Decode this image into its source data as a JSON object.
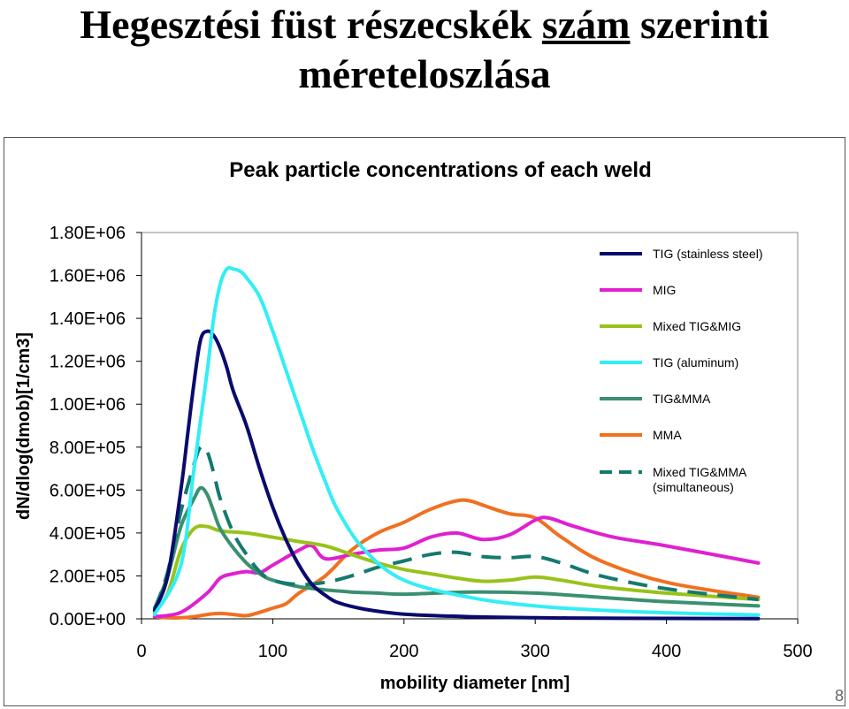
{
  "slide": {
    "title_part1": "Hegesztési füst részecskék",
    "title_underlined": "szám",
    "title_part2": "szerinti",
    "title_line2": "méreteloszlása",
    "page_number": "8"
  },
  "chart_data": {
    "type": "line",
    "title": "Peak particle concentrations of each weld",
    "xlabel": "mobility diameter [nm]",
    "ylabel": "dN/dlog(dmob)[1/cm3]",
    "xlim": [
      0,
      500
    ],
    "ylim": [
      0,
      1800000
    ],
    "x_ticks": [
      "0",
      "100",
      "200",
      "300",
      "400",
      "500"
    ],
    "y_ticks": [
      "0.00E+00",
      "2.00E+05",
      "4.00E+05",
      "6.00E+05",
      "8.00E+05",
      "1.00E+06",
      "1.20E+06",
      "1.40E+06",
      "1.60E+06",
      "1.80E+06"
    ],
    "grid": false,
    "legend_position": "top-right",
    "series": [
      {
        "name": "TIG (stainless steel)",
        "color": "#0a0a6e",
        "dash": false,
        "x": [
          10,
          20,
          30,
          35,
          40,
          45,
          50,
          55,
          60,
          65,
          70,
          80,
          90,
          100,
          110,
          120,
          130,
          140,
          150,
          170,
          200,
          250,
          300,
          350,
          400,
          470
        ],
        "y": [
          40000,
          200000,
          600000,
          850000,
          1100000,
          1300000,
          1340000,
          1320000,
          1260000,
          1170000,
          1060000,
          900000,
          700000,
          520000,
          370000,
          250000,
          160000,
          110000,
          75000,
          45000,
          22000,
          10000,
          5000,
          3000,
          2000,
          1000
        ]
      },
      {
        "name": "MIG",
        "color": "#e020d0",
        "dash": false,
        "x": [
          10,
          30,
          50,
          60,
          70,
          80,
          90,
          100,
          120,
          130,
          140,
          160,
          180,
          200,
          220,
          240,
          260,
          280,
          300,
          310,
          330,
          360,
          400,
          470
        ],
        "y": [
          10000,
          30000,
          120000,
          190000,
          210000,
          220000,
          215000,
          250000,
          320000,
          340000,
          280000,
          300000,
          320000,
          330000,
          380000,
          400000,
          370000,
          390000,
          460000,
          470000,
          430000,
          380000,
          340000,
          260000
        ]
      },
      {
        "name": "Mixed TIG&MIG",
        "color": "#99c21a",
        "dash": false,
        "x": [
          10,
          20,
          30,
          40,
          50,
          60,
          80,
          100,
          120,
          140,
          160,
          180,
          200,
          220,
          240,
          260,
          280,
          300,
          320,
          350,
          400,
          470
        ],
        "y": [
          30000,
          120000,
          320000,
          420000,
          430000,
          410000,
          400000,
          380000,
          360000,
          340000,
          300000,
          260000,
          230000,
          210000,
          190000,
          175000,
          180000,
          195000,
          180000,
          150000,
          120000,
          90000
        ]
      },
      {
        "name": "TIG (aluminum)",
        "color": "#33eef5",
        "dash": false,
        "x": [
          10,
          30,
          40,
          50,
          55,
          60,
          65,
          70,
          75,
          80,
          90,
          100,
          110,
          120,
          130,
          140,
          150,
          170,
          200,
          250,
          300,
          350,
          400,
          470
        ],
        "y": [
          20000,
          250000,
          700000,
          1150000,
          1400000,
          1560000,
          1630000,
          1630000,
          1620000,
          1590000,
          1500000,
          1340000,
          1160000,
          980000,
          800000,
          640000,
          500000,
          320000,
          180000,
          100000,
          60000,
          40000,
          28000,
          18000
        ]
      },
      {
        "name": "TIG&MMA",
        "color": "#3a9070",
        "dash": false,
        "x": [
          10,
          20,
          30,
          40,
          45,
          50,
          55,
          60,
          70,
          80,
          90,
          100,
          120,
          140,
          160,
          180,
          200,
          250,
          300,
          350,
          400,
          470
        ],
        "y": [
          50000,
          200000,
          430000,
          560000,
          610000,
          580000,
          500000,
          420000,
          330000,
          260000,
          210000,
          180000,
          150000,
          135000,
          125000,
          120000,
          115000,
          125000,
          120000,
          100000,
          80000,
          60000
        ]
      },
      {
        "name": "MMA",
        "color": "#f07020",
        "dash": false,
        "x": [
          10,
          20,
          30,
          40,
          50,
          60,
          70,
          80,
          90,
          100,
          110,
          120,
          140,
          160,
          180,
          200,
          220,
          240,
          250,
          260,
          280,
          300,
          320,
          350,
          400,
          470
        ],
        "y": [
          10000,
          5000,
          5000,
          10000,
          20000,
          25000,
          20000,
          15000,
          30000,
          50000,
          70000,
          120000,
          200000,
          320000,
          400000,
          450000,
          510000,
          550000,
          550000,
          530000,
          490000,
          470000,
          380000,
          270000,
          170000,
          100000
        ]
      },
      {
        "name": "Mixed TIG&MMA (simultaneous)",
        "color": "#147a6e",
        "dash": true,
        "x": [
          10,
          20,
          30,
          40,
          45,
          50,
          55,
          60,
          70,
          80,
          90,
          100,
          120,
          140,
          160,
          180,
          200,
          220,
          240,
          260,
          280,
          300,
          320,
          350,
          400,
          470
        ],
        "y": [
          40000,
          220000,
          500000,
          720000,
          800000,
          780000,
          680000,
          560000,
          400000,
          300000,
          220000,
          180000,
          160000,
          170000,
          200000,
          240000,
          270000,
          300000,
          310000,
          290000,
          285000,
          290000,
          260000,
          200000,
          140000,
          90000
        ]
      }
    ]
  }
}
